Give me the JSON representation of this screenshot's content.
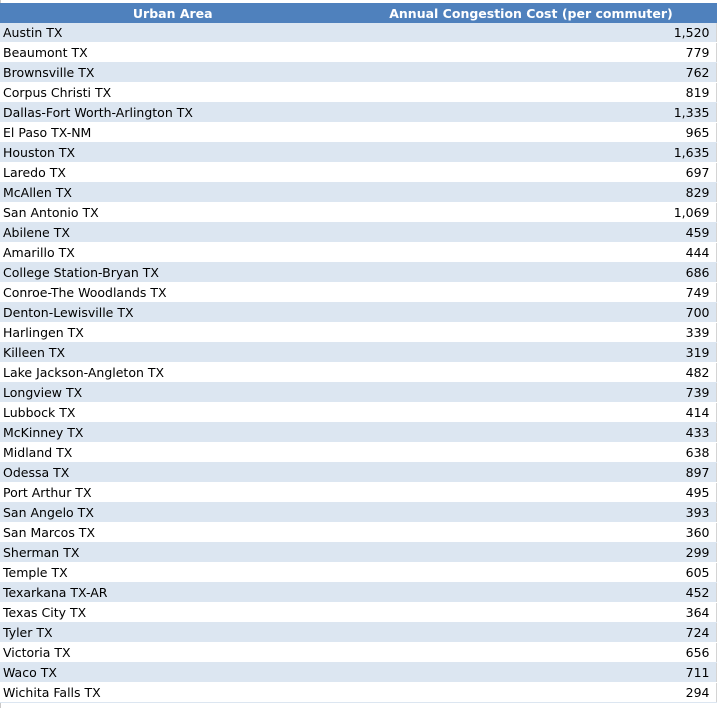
{
  "header": {
    "col1": "Urban Area",
    "col2": "Annual Congestion Cost (per commuter)"
  },
  "rows": [
    {
      "area": "Austin TX",
      "cost": "1,520"
    },
    {
      "area": "Beaumont TX",
      "cost": "779"
    },
    {
      "area": "Brownsville TX",
      "cost": "762"
    },
    {
      "area": "Corpus Christi TX",
      "cost": "819"
    },
    {
      "area": "Dallas-Fort Worth-Arlington TX",
      "cost": "1,335"
    },
    {
      "area": "El Paso TX-NM",
      "cost": "965"
    },
    {
      "area": "Houston TX",
      "cost": "1,635"
    },
    {
      "area": "Laredo TX",
      "cost": "697"
    },
    {
      "area": "McAllen TX",
      "cost": "829"
    },
    {
      "area": "San Antonio TX",
      "cost": "1,069"
    },
    {
      "area": "Abilene TX",
      "cost": "459"
    },
    {
      "area": "Amarillo TX",
      "cost": "444"
    },
    {
      "area": "College Station-Bryan TX",
      "cost": "686"
    },
    {
      "area": "Conroe-The Woodlands TX",
      "cost": "749"
    },
    {
      "area": "Denton-Lewisville TX",
      "cost": "700"
    },
    {
      "area": "Harlingen TX",
      "cost": "339"
    },
    {
      "area": "Killeen TX",
      "cost": "319"
    },
    {
      "area": "Lake Jackson-Angleton TX",
      "cost": "482"
    },
    {
      "area": "Longview TX",
      "cost": "739"
    },
    {
      "area": "Lubbock TX",
      "cost": "414"
    },
    {
      "area": "McKinney TX",
      "cost": "433"
    },
    {
      "area": "Midland TX",
      "cost": "638"
    },
    {
      "area": "Odessa TX",
      "cost": "897"
    },
    {
      "area": "Port Arthur TX",
      "cost": "495"
    },
    {
      "area": "San Angelo TX",
      "cost": "393"
    },
    {
      "area": "San Marcos TX",
      "cost": "360"
    },
    {
      "area": "Sherman TX",
      "cost": "299"
    },
    {
      "area": "Temple TX",
      "cost": "605"
    },
    {
      "area": "Texarkana TX-AR",
      "cost": "452"
    },
    {
      "area": "Texas City TX",
      "cost": "364"
    },
    {
      "area": "Tyler TX",
      "cost": "724"
    },
    {
      "area": "Victoria TX",
      "cost": "656"
    },
    {
      "area": "Waco TX",
      "cost": "711"
    },
    {
      "area": "Wichita Falls TX",
      "cost": "294"
    }
  ],
  "colors": {
    "header_bg": "#4f81bd",
    "band_bg": "#dce6f1"
  }
}
